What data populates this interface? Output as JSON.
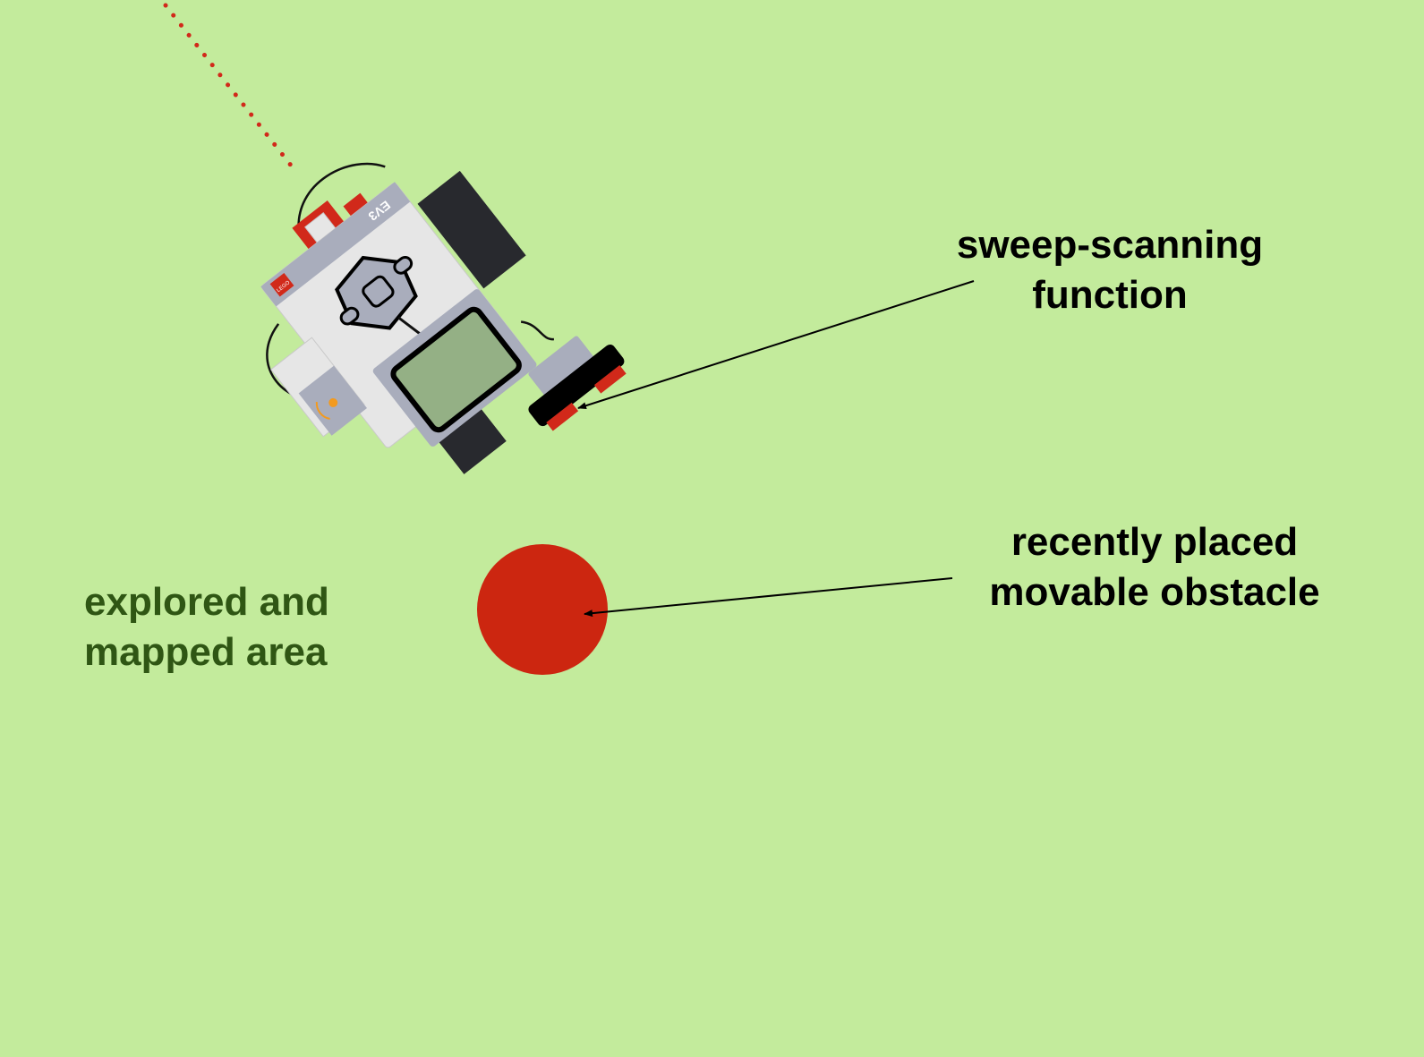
{
  "colors": {
    "background": "#c3eb9c",
    "path_dots": "#d1291a",
    "obstacle": "#cc2610",
    "label_dark": "#000000",
    "label_green": "#2f5614",
    "arrow": "#000000",
    "robot_body": "#e6e6e6",
    "robot_panel": "#a9adbc",
    "robot_wheel": "#28292e",
    "robot_screen": "#94b085",
    "robot_red": "#d1291a",
    "sensor_orange": "#f29a1f"
  },
  "robot": {
    "brand_text": "EV3",
    "logo_text": "LEGO"
  },
  "labels": {
    "sweep_line1": "sweep-scanning",
    "sweep_line2": "function",
    "obstacle_line1": "recently placed",
    "obstacle_line2": "movable obstacle",
    "explored_line1": "explored and",
    "explored_line2": "mapped area"
  }
}
